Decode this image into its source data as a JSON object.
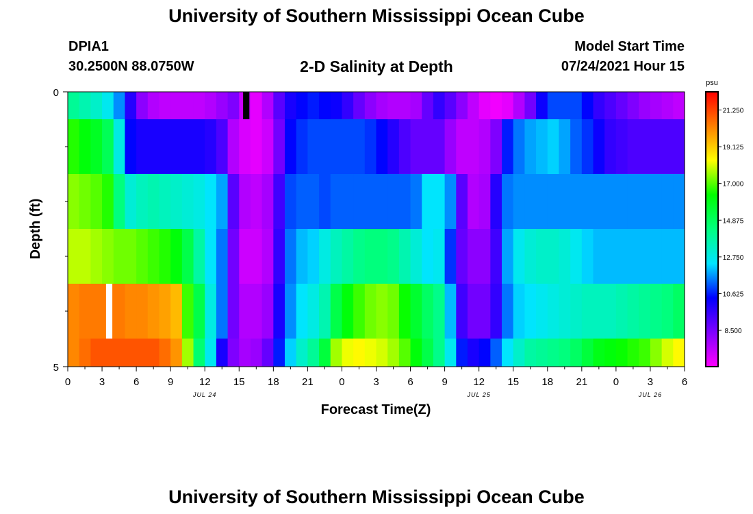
{
  "header": {
    "title": "University of Southern Mississippi Ocean Cube",
    "station": "DPIA1",
    "coords": "30.2500N  88.0750W",
    "subtitle": "2-D Salinity at Depth",
    "model_start_label": "Model Start Time",
    "model_start_value": "07/24/2021 Hour 15"
  },
  "footer": {
    "title": "University of Southern Mississippi Ocean Cube"
  },
  "chart_data": {
    "type": "heatmap",
    "title": "2-D Salinity at Depth",
    "xlabel": "Forecast Time(Z)",
    "ylabel": "Depth (ft)",
    "x_range_hours": [
      0,
      54
    ],
    "x_step_hours": 1,
    "x_tick_labels": [
      "0",
      "3",
      "6",
      "9",
      "12",
      "15",
      "18",
      "21",
      "0",
      "3",
      "6",
      "9",
      "12",
      "15",
      "18",
      "21",
      "0",
      "3",
      "6"
    ],
    "date_labels": [
      {
        "text": "JUL 24",
        "hour": 12
      },
      {
        "text": "JUL 25",
        "hour": 36
      },
      {
        "text": "JUL 26",
        "hour": 51
      }
    ],
    "y_tick_labels": [
      "0",
      "5"
    ],
    "y_range": [
      0,
      5
    ],
    "depth_bands": 5,
    "colorbar": {
      "unit": "psu",
      "range": [
        6.4,
        22.3
      ],
      "tick_values": [
        21.25,
        19.125,
        17.0,
        14.875,
        12.75,
        10.625,
        8.5
      ],
      "tick_labels": [
        "21.250",
        "19.125",
        "17.000",
        "14.875",
        "12.750",
        "10.625",
        "8.500"
      ],
      "colors": [
        "#ff00ff",
        "#8000ff",
        "#0000ff",
        "#00e5ff",
        "#00ff80",
        "#00ff00",
        "#ffff00",
        "#ff8000",
        "#ff0000"
      ]
    },
    "missing_cells": [
      {
        "layer": 0,
        "hour": 15,
        "color": "#000000"
      },
      {
        "layer": 4,
        "hour": 3,
        "color": "#ffffff"
      }
    ],
    "salinity_psu": [
      [
        14.0,
        13.6,
        13.2,
        12.6,
        11.6,
        9.8,
        8.2,
        7.6,
        7.4,
        7.4,
        7.4,
        7.4,
        7.6,
        8.0,
        8.4,
        7.2,
        6.8,
        7.6,
        9.0,
        10.0,
        10.4,
        10.6,
        10.4,
        10.2,
        9.6,
        8.8,
        8.2,
        7.8,
        7.6,
        7.6,
        7.8,
        8.8,
        9.6,
        9.0,
        8.2,
        7.4,
        6.8,
        6.6,
        6.8,
        7.6,
        8.6,
        10.2,
        11.0,
        11.0,
        11.0,
        10.4,
        9.6,
        9.2,
        8.8,
        8.4,
        8.0,
        7.8,
        7.6,
        7.4
      ],
      [
        16.6,
        16.2,
        15.8,
        15.0,
        12.8,
        10.4,
        10.0,
        10.0,
        10.0,
        10.0,
        10.0,
        10.0,
        9.8,
        9.2,
        7.6,
        7.0,
        6.8,
        7.2,
        8.6,
        10.4,
        10.8,
        11.0,
        11.0,
        11.0,
        11.0,
        11.0,
        10.8,
        10.4,
        9.8,
        9.2,
        8.8,
        8.8,
        8.8,
        8.0,
        7.4,
        7.4,
        7.6,
        8.4,
        10.6,
        11.4,
        11.8,
        12.0,
        12.2,
        11.8,
        11.2,
        10.8,
        10.2,
        9.6,
        9.4,
        9.2,
        9.2,
        9.2,
        9.2,
        9.2
      ],
      [
        17.4,
        17.2,
        17.0,
        16.6,
        14.4,
        13.0,
        13.4,
        13.6,
        13.4,
        13.2,
        13.0,
        12.8,
        12.4,
        11.8,
        9.0,
        7.6,
        7.4,
        7.8,
        9.4,
        11.0,
        11.2,
        11.2,
        11.0,
        11.2,
        11.2,
        11.2,
        11.2,
        11.2,
        11.2,
        11.2,
        11.4,
        12.4,
        12.4,
        11.6,
        9.0,
        7.6,
        7.8,
        9.8,
        11.4,
        11.6,
        11.6,
        11.6,
        11.6,
        11.6,
        11.6,
        11.6,
        11.6,
        11.6,
        11.6,
        11.6,
        11.6,
        11.6,
        11.6,
        11.6
      ],
      [
        17.8,
        17.8,
        17.6,
        17.4,
        17.2,
        17.2,
        17.0,
        16.8,
        16.6,
        16.2,
        15.2,
        13.8,
        12.4,
        11.4,
        8.6,
        7.2,
        7.2,
        7.6,
        9.6,
        11.4,
        12.0,
        12.2,
        12.8,
        13.4,
        13.8,
        14.2,
        14.4,
        14.4,
        14.2,
        13.6,
        13.0,
        12.4,
        12.6,
        10.8,
        8.8,
        8.2,
        8.2,
        9.4,
        11.8,
        12.6,
        13.0,
        13.2,
        13.2,
        13.0,
        12.6,
        12.2,
        12.0,
        12.0,
        12.0,
        12.0,
        12.0,
        12.0,
        12.0,
        12.0
      ],
      [
        20.2,
        20.4,
        20.4,
        20.4,
        20.4,
        20.2,
        20.2,
        20.0,
        19.8,
        19.4,
        16.8,
        15.2,
        12.8,
        11.4,
        8.6,
        7.6,
        7.6,
        8.0,
        10.0,
        11.6,
        12.4,
        12.8,
        13.6,
        15.2,
        16.2,
        16.8,
        17.2,
        17.4,
        17.2,
        16.4,
        15.6,
        14.8,
        14.2,
        12.0,
        9.4,
        8.6,
        8.6,
        9.6,
        11.4,
        12.2,
        12.4,
        12.6,
        12.8,
        13.0,
        13.2,
        13.4,
        13.4,
        13.4,
        13.6,
        13.8,
        14.0,
        14.2,
        14.4,
        14.8
      ],
      [
        20.2,
        20.6,
        21.0,
        21.0,
        21.0,
        21.0,
        21.0,
        21.0,
        20.6,
        20.0,
        17.6,
        14.6,
        12.6,
        10.0,
        8.4,
        7.8,
        8.0,
        8.8,
        10.6,
        12.2,
        13.2,
        14.0,
        15.4,
        17.6,
        18.2,
        18.4,
        18.2,
        18.0,
        17.6,
        17.0,
        16.2,
        15.2,
        14.2,
        12.6,
        10.6,
        10.0,
        10.4,
        11.2,
        12.4,
        13.2,
        13.8,
        14.0,
        14.2,
        14.4,
        14.8,
        15.4,
        16.0,
        16.2,
        16.4,
        16.6,
        16.8,
        17.4,
        18.0,
        18.4
      ]
    ]
  }
}
